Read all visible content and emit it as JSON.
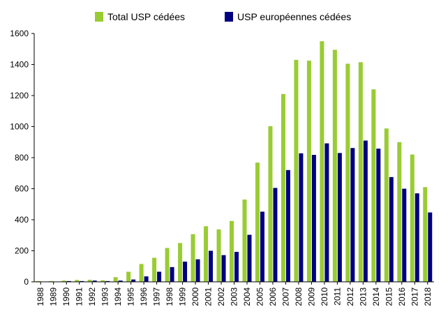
{
  "chart_data": {
    "type": "bar",
    "title": "",
    "xlabel": "",
    "ylabel": "",
    "ylim": [
      0,
      1600
    ],
    "yticks": [
      0,
      200,
      400,
      600,
      800,
      1000,
      1200,
      1400,
      1600
    ],
    "grid": false,
    "legend_position": "top",
    "categories": [
      "1988",
      "1989",
      "1990",
      "1991",
      "1992",
      "1993",
      "1994",
      "1995",
      "1996",
      "1997",
      "1998",
      "1999",
      "2000",
      "2001",
      "2002",
      "2003",
      "2004",
      "2005",
      "2006",
      "2007",
      "2008",
      "2009",
      "2010",
      "2011",
      "2012",
      "2013",
      "2014",
      "2015",
      "2016",
      "2017",
      "2018"
    ],
    "series": [
      {
        "name": "Total USP cédées",
        "color": "#99cc33",
        "values": [
          5,
          5,
          8,
          12,
          13,
          10,
          30,
          65,
          115,
          155,
          218,
          250,
          307,
          358,
          338,
          392,
          530,
          768,
          1003,
          1210,
          1430,
          1425,
          1550,
          1495,
          1405,
          1415,
          1240,
          988,
          900,
          820,
          610
        ]
      },
      {
        "name": "USP européennes cédées",
        "color": "#000080",
        "values": [
          0,
          0,
          5,
          5,
          8,
          5,
          8,
          15,
          35,
          65,
          95,
          130,
          145,
          200,
          172,
          193,
          303,
          452,
          605,
          720,
          828,
          818,
          892,
          830,
          862,
          910,
          858,
          675,
          600,
          570,
          447
        ]
      }
    ]
  }
}
